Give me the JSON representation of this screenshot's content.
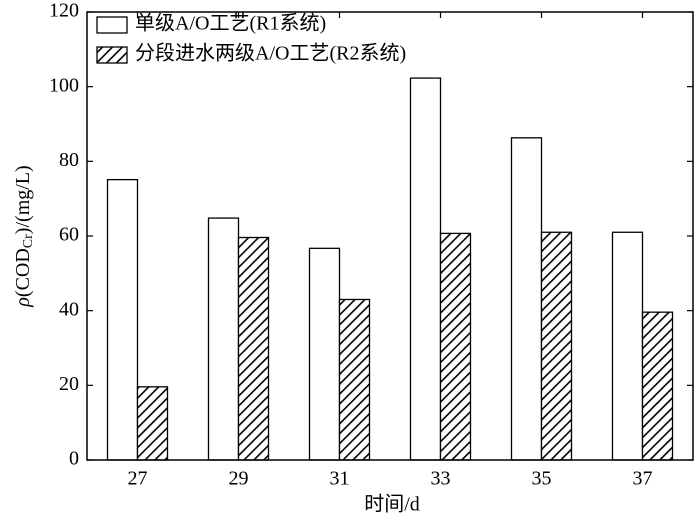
{
  "chart_data": {
    "type": "bar",
    "xlabel": "时间/d",
    "ylabel_parts": [
      "ρ",
      "(COD",
      "Cr",
      ")/(mg/L)"
    ],
    "categories": [
      "27",
      "29",
      "31",
      "33",
      "35",
      "37"
    ],
    "series": [
      {
        "name": "单级A/O工艺(R1系统)",
        "color": "#ffffff",
        "pattern": "none",
        "values": [
          75.1,
          64.8,
          56.7,
          102.3,
          86.3,
          61.0
        ]
      },
      {
        "name": "分段进水两级A/O工艺(R2系统)",
        "color": "#ffffff",
        "pattern": "hatch",
        "values": [
          19.6,
          59.6,
          43.0,
          60.7,
          61.0,
          39.6
        ]
      }
    ],
    "ylim": [
      0,
      120
    ],
    "yticks": [
      0,
      20,
      40,
      60,
      80,
      100,
      120
    ],
    "grid": false,
    "legend": "upper-left"
  }
}
